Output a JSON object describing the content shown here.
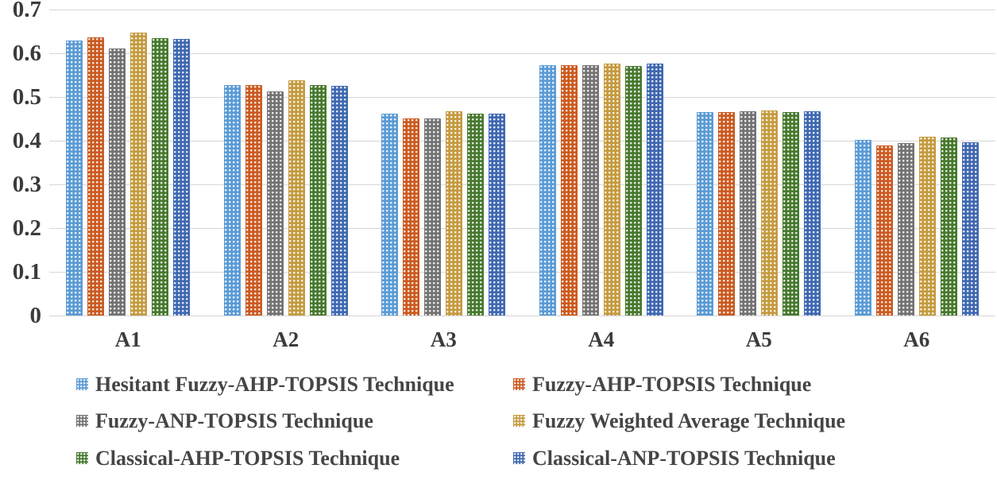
{
  "chart_data": {
    "type": "bar",
    "title": "",
    "xlabel": "",
    "ylabel": "",
    "categories": [
      "A1",
      "A2",
      "A3",
      "A4",
      "A5",
      "A6"
    ],
    "series": [
      {
        "name": "Hesitant Fuzzy-AHP-TOPSIS Technique",
        "color": "#5B9BD5",
        "values": [
          0.63,
          0.527,
          0.462,
          0.572,
          0.466,
          0.402
        ]
      },
      {
        "name": "Fuzzy-AHP-TOPSIS Technique",
        "color": "#CC5A20",
        "values": [
          0.636,
          0.527,
          0.451,
          0.572,
          0.466,
          0.389
        ]
      },
      {
        "name": "Fuzzy-ANP-TOPSIS Technique",
        "color": "#737373",
        "values": [
          0.611,
          0.512,
          0.451,
          0.572,
          0.467,
          0.395
        ]
      },
      {
        "name": "Fuzzy Weighted Average Technique",
        "color": "#C59B40",
        "values": [
          0.647,
          0.539,
          0.468,
          0.577,
          0.469,
          0.41
        ]
      },
      {
        "name": "Classical-AHP-TOPSIS Technique",
        "color": "#47792E",
        "values": [
          0.635,
          0.528,
          0.462,
          0.571,
          0.466,
          0.407
        ]
      },
      {
        "name": "Classical-ANP-TOPSIS Technique",
        "color": "#3F68B1",
        "values": [
          0.632,
          0.526,
          0.462,
          0.577,
          0.467,
          0.396
        ]
      }
    ],
    "ylim": [
      0,
      0.7
    ],
    "ytick_labels": [
      "0.7",
      "0.6",
      "0.5",
      "0.4",
      "0.3",
      "0.2",
      "0.1",
      "0"
    ],
    "grid": true,
    "legend_position": "bottom",
    "bar_pattern": "light-dots",
    "gridline_color": "#D6D6D6",
    "axis_text_color": "#3B3B3B",
    "legend_text_color": "#454545"
  }
}
